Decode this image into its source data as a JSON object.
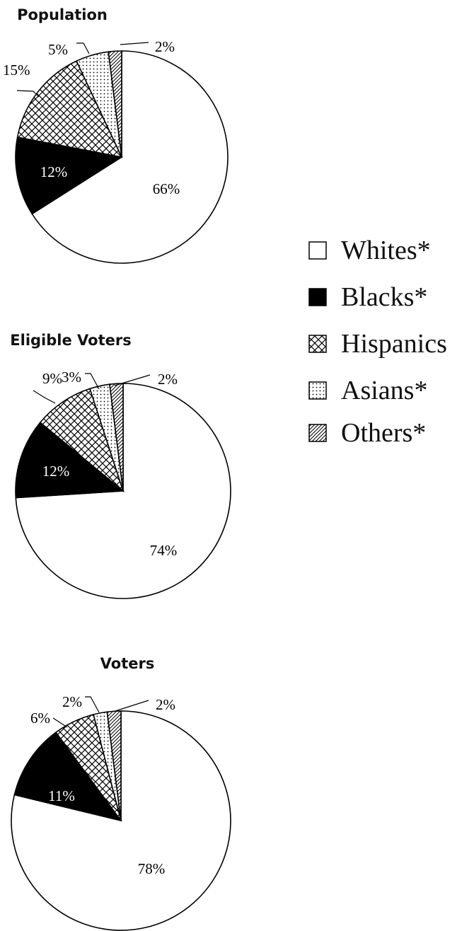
{
  "colors": {
    "stroke": "#000000",
    "background": "#ffffff"
  },
  "legend": {
    "placement": "right",
    "items": [
      {
        "label": "Whites*",
        "pattern": "white"
      },
      {
        "label": "Blacks*",
        "pattern": "black"
      },
      {
        "label": "Hispanics",
        "pattern": "crosshatch"
      },
      {
        "label": "Asians*",
        "pattern": "dots"
      },
      {
        "label": "Others*",
        "pattern": "diagonal"
      }
    ]
  },
  "chart_data": [
    {
      "type": "pie",
      "title": "Population",
      "categories": [
        "Whites*",
        "Blacks*",
        "Hispanics",
        "Asians*",
        "Others*"
      ],
      "values": [
        66,
        12,
        15,
        5,
        2
      ],
      "labels": [
        "66%",
        "12%",
        "15%",
        "5%",
        "2%"
      ]
    },
    {
      "type": "pie",
      "title": "Eligible Voters",
      "categories": [
        "Whites*",
        "Blacks*",
        "Hispanics",
        "Asians*",
        "Others*"
      ],
      "values": [
        74,
        12,
        9,
        3,
        2
      ],
      "labels": [
        "74%",
        "12%",
        "9%",
        "3%",
        "2%"
      ]
    },
    {
      "type": "pie",
      "title": "Voters",
      "categories": [
        "Whites*",
        "Blacks*",
        "Hispanics",
        "Asians*",
        "Others*"
      ],
      "values": [
        78,
        11,
        6,
        2,
        2
      ],
      "labels": [
        "78%",
        "11%",
        "6%",
        "2%",
        "2%"
      ]
    }
  ]
}
